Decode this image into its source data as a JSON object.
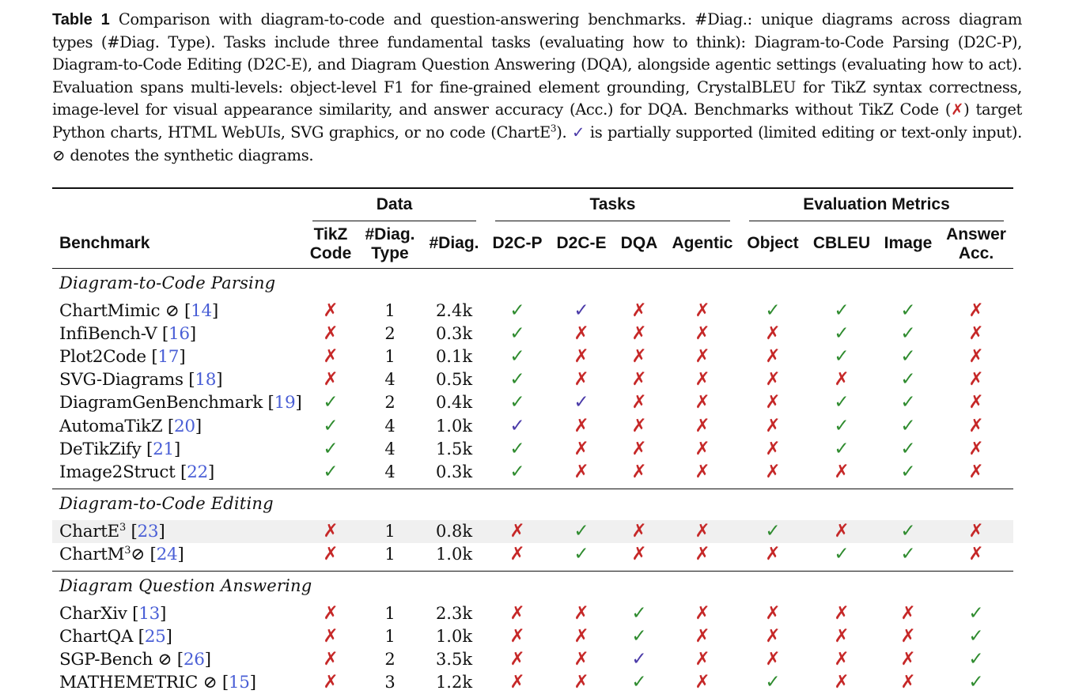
{
  "caption": {
    "label": "Table 1",
    "p1": " Comparison with diagram-to-code and question-answering benchmarks. #Diag.: unique diagrams across diagram types (#Diag. Type). Tasks include three fundamental tasks (evaluating how to think): Diagram-to-Code Parsing (D2C-P), Diagram-to-Code Editing (D2C-E), and Diagram Question Answering (DQA), alongside agentic settings (evaluating how to act). Evaluation spans multi-levels: object-level F1 for fine-grained element grounding, CrystalBLEU for TikZ syntax correctness, image-level for visual appearance similarity, and answer accuracy (Acc.) for DQA. Benchmarks without TikZ Code (",
    "cross": "✗",
    "p2": ") target Python charts, HTML WebUIs, SVG graphics, or no code (ChartE",
    "sup": "3",
    "p3": ").",
    "partial": "✓",
    "p4": " is partially supported (limited editing or text-only input). ⊘ denotes the synthetic diagrams."
  },
  "headers": {
    "group_data": "Data",
    "group_tasks": "Tasks",
    "group_eval": "Evaluation Metrics",
    "benchmark": "Benchmark",
    "tikz_1": "TikZ",
    "tikz_2": "Code",
    "dtype_1": "#Diag.",
    "dtype_2": "Type",
    "diag": "#Diag.",
    "d2cp": "D2C-P",
    "d2ce": "D2C-E",
    "dqa": "DQA",
    "agentic": "Agentic",
    "object": "Object",
    "cbleu": "CBLEU",
    "image": "Image",
    "acc_1": "Answer",
    "acc_2": "Acc."
  },
  "marks": {
    "yes": "✓",
    "no": "✗",
    "partial": "✓"
  },
  "colors": {
    "yes": "#2e8b2e",
    "no": "#c62828",
    "partial": "#4a3aa8",
    "ref": "#4a5fd6",
    "shade": "#f0f0f0"
  },
  "sections": [
    {
      "title": "Diagram-to-Code Parsing",
      "rows": [
        {
          "name": "ChartMimic ⊘ [",
          "ref": "14",
          "close": "]",
          "tikz": "no",
          "dtype": "1",
          "diag": "2.4k",
          "d2cp": "yes",
          "d2ce": "partial",
          "dqa": "no",
          "agentic": "no",
          "object": "yes",
          "cbleu": "yes",
          "image": "yes",
          "acc": "no"
        },
        {
          "name": "InfiBench-V [",
          "ref": "16",
          "close": "]",
          "tikz": "no",
          "dtype": "2",
          "diag": "0.3k",
          "d2cp": "yes",
          "d2ce": "no",
          "dqa": "no",
          "agentic": "no",
          "object": "no",
          "cbleu": "yes",
          "image": "yes",
          "acc": "no"
        },
        {
          "name": "Plot2Code [",
          "ref": "17",
          "close": "]",
          "tikz": "no",
          "dtype": "1",
          "diag": "0.1k",
          "d2cp": "yes",
          "d2ce": "no",
          "dqa": "no",
          "agentic": "no",
          "object": "no",
          "cbleu": "yes",
          "image": "yes",
          "acc": "no"
        },
        {
          "name": "SVG-Diagrams [",
          "ref": "18",
          "close": "]",
          "tikz": "no",
          "dtype": "4",
          "diag": "0.5k",
          "d2cp": "yes",
          "d2ce": "no",
          "dqa": "no",
          "agentic": "no",
          "object": "no",
          "cbleu": "no",
          "image": "yes",
          "acc": "no"
        },
        {
          "name": "DiagramGenBenchmark [",
          "ref": "19",
          "close": "]",
          "tikz": "yes",
          "dtype": "2",
          "diag": "0.4k",
          "d2cp": "yes",
          "d2ce": "partial",
          "dqa": "no",
          "agentic": "no",
          "object": "no",
          "cbleu": "yes",
          "image": "yes",
          "acc": "no"
        },
        {
          "name": "AutomaTikZ [",
          "ref": "20",
          "close": "]",
          "tikz": "yes",
          "dtype": "4",
          "diag": "1.0k",
          "d2cp": "partial",
          "d2ce": "no",
          "dqa": "no",
          "agentic": "no",
          "object": "no",
          "cbleu": "yes",
          "image": "yes",
          "acc": "no"
        },
        {
          "name": "DeTikZify [",
          "ref": "21",
          "close": "]",
          "tikz": "yes",
          "dtype": "4",
          "diag": "1.5k",
          "d2cp": "yes",
          "d2ce": "no",
          "dqa": "no",
          "agentic": "no",
          "object": "no",
          "cbleu": "yes",
          "image": "yes",
          "acc": "no"
        },
        {
          "name": "Image2Struct [",
          "ref": "22",
          "close": "]",
          "tikz": "yes",
          "dtype": "4",
          "diag": "0.3k",
          "d2cp": "yes",
          "d2ce": "no",
          "dqa": "no",
          "agentic": "no",
          "object": "no",
          "cbleu": "no",
          "image": "yes",
          "acc": "no"
        }
      ]
    },
    {
      "title": "Diagram-to-Code Editing",
      "rows": [
        {
          "name": "ChartE",
          "sup": "3",
          "name2": " [",
          "ref": "23",
          "close": "]",
          "shaded": true,
          "tikz": "no",
          "dtype": "1",
          "diag": "0.8k",
          "d2cp": "no",
          "d2ce": "yes",
          "dqa": "no",
          "agentic": "no",
          "object": "yes",
          "cbleu": "no",
          "image": "yes",
          "acc": "no"
        },
        {
          "name": "ChartM",
          "sup": "3",
          "name2": "⊘ [",
          "ref": "24",
          "close": "]",
          "tikz": "no",
          "dtype": "1",
          "diag": "1.0k",
          "d2cp": "no",
          "d2ce": "yes",
          "dqa": "no",
          "agentic": "no",
          "object": "no",
          "cbleu": "yes",
          "image": "yes",
          "acc": "no"
        }
      ]
    },
    {
      "title": "Diagram Question Answering",
      "rows": [
        {
          "name": "CharXiv [",
          "ref": "13",
          "close": "]",
          "tikz": "no",
          "dtype": "1",
          "diag": "2.3k",
          "d2cp": "no",
          "d2ce": "no",
          "dqa": "yes",
          "agentic": "no",
          "object": "no",
          "cbleu": "no",
          "image": "no",
          "acc": "yes"
        },
        {
          "name": "ChartQA [",
          "ref": "25",
          "close": "]",
          "tikz": "no",
          "dtype": "1",
          "diag": "1.0k",
          "d2cp": "no",
          "d2ce": "no",
          "dqa": "yes",
          "agentic": "no",
          "object": "no",
          "cbleu": "no",
          "image": "no",
          "acc": "yes"
        },
        {
          "name": "SGP-Bench ⊘ [",
          "ref": "26",
          "close": "]",
          "tikz": "no",
          "dtype": "2",
          "diag": "3.5k",
          "d2cp": "no",
          "d2ce": "no",
          "dqa": "partial",
          "agentic": "no",
          "object": "no",
          "cbleu": "no",
          "image": "no",
          "acc": "yes"
        },
        {
          "name": "MATHEMETRIC ⊘ [",
          "ref": "15",
          "close": "]",
          "tikz": "no",
          "dtype": "3",
          "diag": "1.2k",
          "d2cp": "no",
          "d2ce": "no",
          "dqa": "yes",
          "agentic": "no",
          "object": "yes",
          "cbleu": "no",
          "image": "no",
          "acc": "yes"
        }
      ]
    }
  ]
}
